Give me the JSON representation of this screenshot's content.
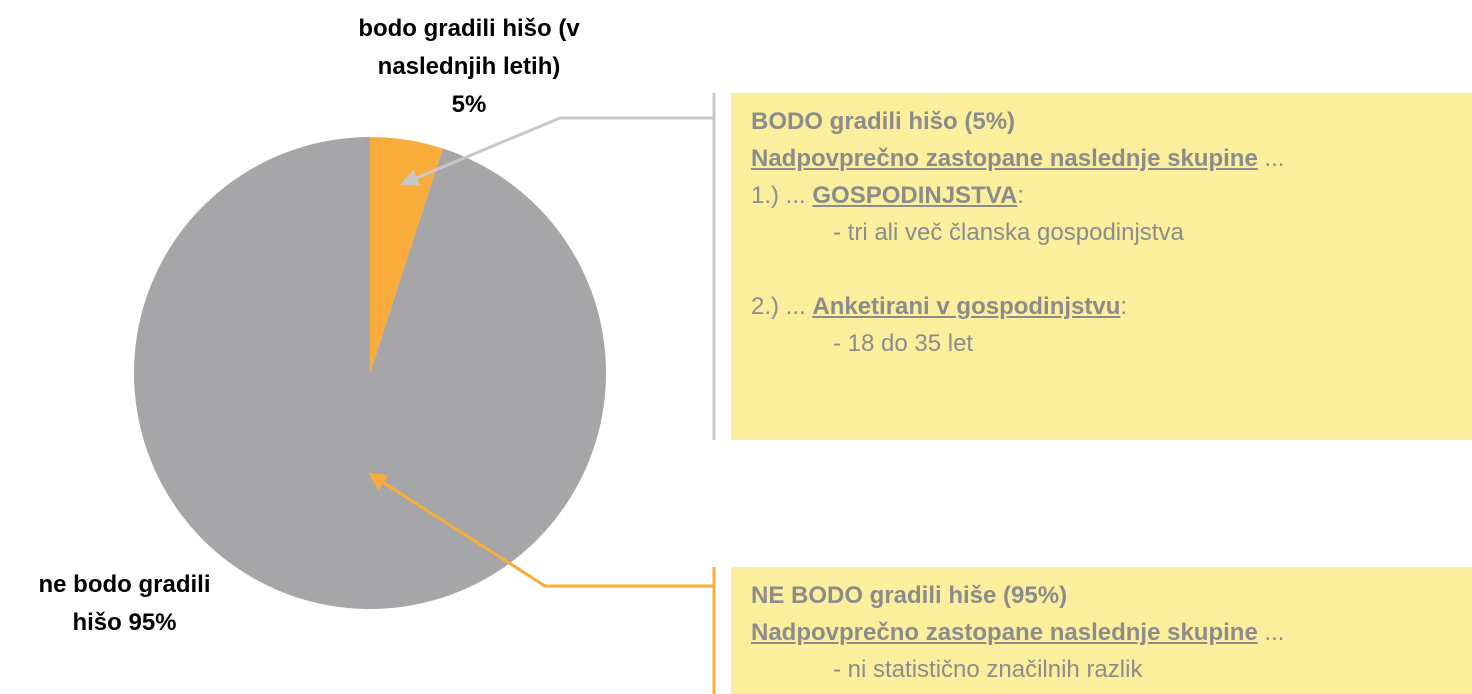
{
  "chart_data": {
    "type": "pie",
    "categories": [
      "bodo gradili hišo (v naslednjih letih)",
      "ne bodo gradili hišo"
    ],
    "values": [
      5,
      95
    ],
    "value_labels": [
      "5%",
      "95%"
    ],
    "colors": [
      "#f9ab3b",
      "#a6a6a8"
    ],
    "annotations": [
      {
        "title": "BODO gradili hišo (5%)",
        "heading": "Nadpovprečno zastopane naslednje skupine",
        "heading_suffix": "...",
        "items": [
          {
            "prefix": "1.) ...",
            "label": "GOSPODINJSTVA",
            "suffix": ":",
            "detail": "- tri ali več članska gospodinjstva"
          },
          {
            "prefix": "2.) ...",
            "label": "Anketirani v gospodinjstvu",
            "suffix": ":",
            "detail": "- 18 do 35 let"
          }
        ]
      },
      {
        "title": "NE BODO gradili hiše (95%)",
        "heading": "Nadpovprečno zastopane naslednje skupine",
        "heading_suffix": "...",
        "items": [
          {
            "detail": "- ni statistično značilnih razlik"
          }
        ]
      }
    ]
  }
}
